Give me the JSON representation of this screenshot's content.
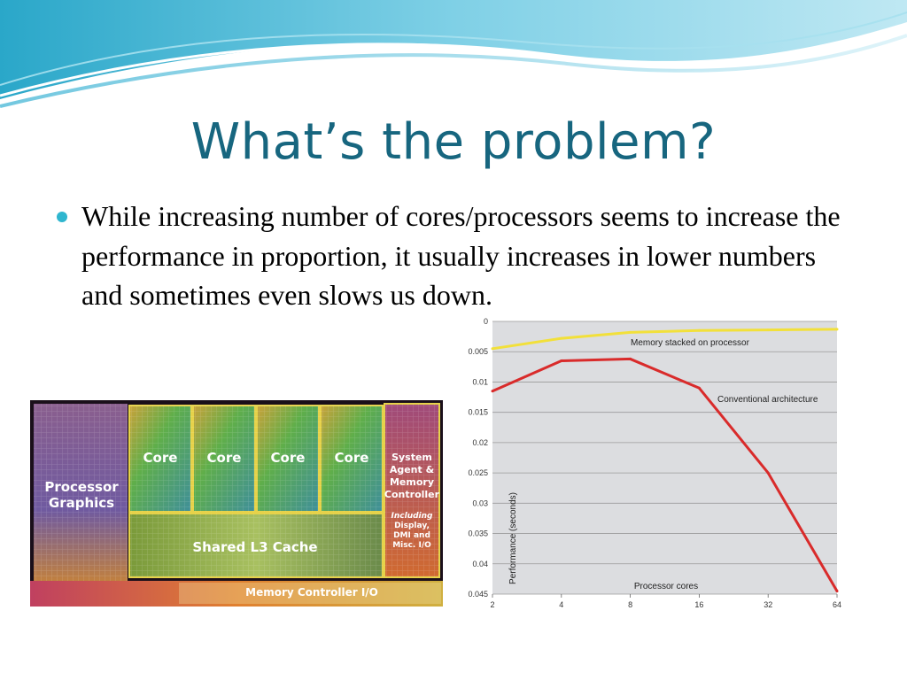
{
  "slide": {
    "title": "What’s the problem?",
    "bullet": "While increasing number of cores/processors seems to increase the performance in proportion, it usually increases in lower numbers and sometimes even slows us down."
  },
  "die_image": {
    "labels": {
      "processor_graphics": [
        "Processor",
        "Graphics"
      ],
      "cores": [
        "Core",
        "Core",
        "Core",
        "Core"
      ],
      "system_agent": [
        "System",
        "Agent &",
        "Memory",
        "Controller"
      ],
      "system_agent_note": [
        "Including",
        "Display,",
        "DMI and",
        "Misc. I/O"
      ],
      "l3": "Shared L3 Cache",
      "memory_io": "Memory Controller I/O"
    }
  },
  "chart_data": {
    "type": "line",
    "x": [
      "2",
      "4",
      "8",
      "16",
      "32",
      "64"
    ],
    "xlabel": "Processor cores",
    "ylabel": "Performance (seconds)",
    "y_ticks": [
      "0",
      "0.005",
      "0.01",
      "0.015",
      "0.02",
      "0.025",
      "0.03",
      "0.035",
      "0.04",
      "0.045"
    ],
    "ylim": [
      0,
      0.045
    ],
    "y_inverted": true,
    "grid": true,
    "series": [
      {
        "name": "Memory stacked on processor",
        "color": "#f2e03a",
        "values": [
          0.0045,
          0.0028,
          0.0018,
          0.0015,
          0.0014,
          0.0013
        ]
      },
      {
        "name": "Conventional architecture",
        "color": "#d92b2b",
        "values": [
          0.0115,
          0.0065,
          0.0062,
          0.011,
          0.025,
          0.0445
        ]
      }
    ]
  }
}
